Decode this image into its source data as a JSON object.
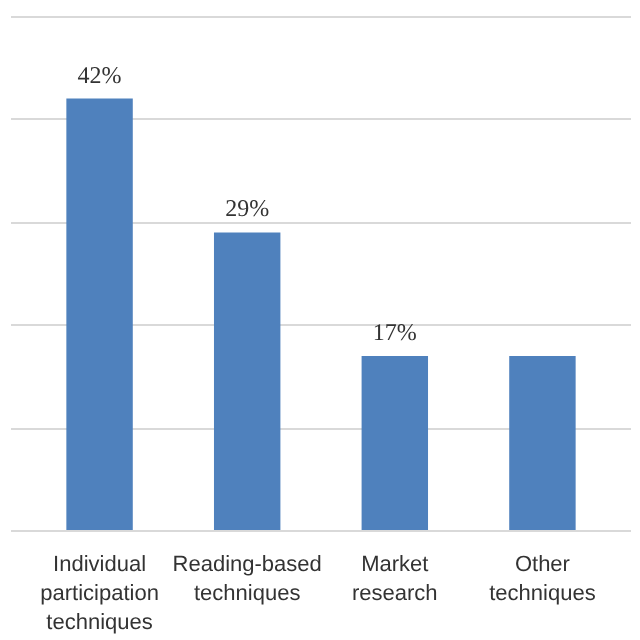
{
  "chart_data": {
    "type": "bar",
    "categories": [
      "Individual participation techniques",
      "Reading-based techniques",
      "Market research",
      "Other techniques"
    ],
    "values": [
      42,
      29,
      17,
      17
    ],
    "value_labels": [
      "42%",
      "29%",
      "17%",
      null
    ],
    "color": "#4f81bd",
    "yticks": [
      0,
      10,
      20,
      30,
      40,
      50
    ],
    "grid": "y",
    "tick_labels": "x"
  }
}
